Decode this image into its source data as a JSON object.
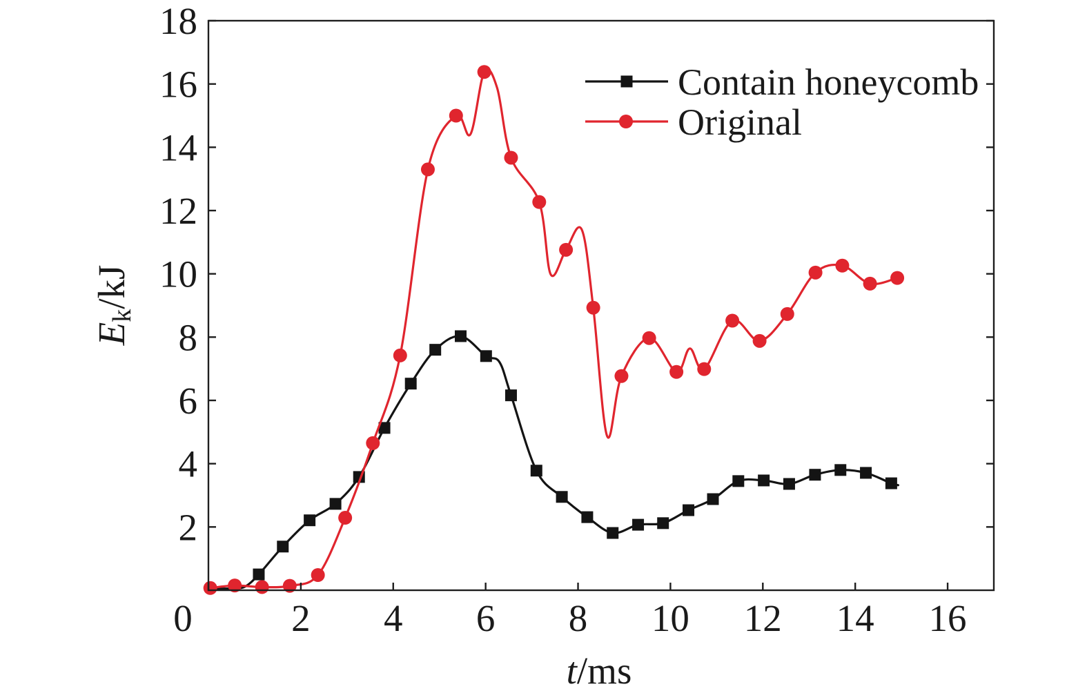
{
  "chart_data": {
    "type": "line",
    "xlabel": {
      "symbol": "t",
      "unit": "/ms"
    },
    "ylabel": {
      "symbol": "E",
      "subscript": "k",
      "unit": "/kJ"
    },
    "xlim": [
      0,
      17
    ],
    "ylim": [
      0,
      18
    ],
    "xticks": [
      0,
      2,
      4,
      6,
      8,
      10,
      12,
      14,
      16
    ],
    "yticks": [
      2,
      4,
      6,
      8,
      10,
      12,
      14,
      16,
      18
    ],
    "grid": false,
    "legend_position": "top-right",
    "series": [
      {
        "name": "Contain honeycomb",
        "color": "#141414",
        "marker": "square",
        "x": [
          0.02,
          0.54,
          0.8,
          1.09,
          1.61,
          2.19,
          2.75,
          3.26,
          3.81,
          4.38,
          4.91,
          5.46,
          6.01,
          6.3,
          6.55,
          7.1,
          7.65,
          8.2,
          8.75,
          9.3,
          9.84,
          10.39,
          10.92,
          11.47,
          12.02,
          12.57,
          13.13,
          13.68,
          14.23,
          14.78,
          14.93
        ],
        "y": [
          0.05,
          0.06,
          0.12,
          0.5,
          1.38,
          2.21,
          2.73,
          3.58,
          5.13,
          6.53,
          7.6,
          8.03,
          7.4,
          7.21,
          6.16,
          3.78,
          2.95,
          2.31,
          1.81,
          2.07,
          2.12,
          2.53,
          2.88,
          3.45,
          3.47,
          3.36,
          3.65,
          3.8,
          3.71,
          3.38,
          3.32
        ],
        "marked": [
          false,
          false,
          false,
          true,
          true,
          true,
          true,
          true,
          true,
          true,
          true,
          true,
          true,
          false,
          true,
          true,
          true,
          true,
          true,
          true,
          true,
          true,
          true,
          true,
          true,
          true,
          true,
          true,
          true,
          true,
          false
        ]
      },
      {
        "name": "Original",
        "color": "#e0252e",
        "marker": "circle",
        "x": [
          0.04,
          0.57,
          1.16,
          1.76,
          2.37,
          2.96,
          3.56,
          4.15,
          4.75,
          5.36,
          5.67,
          5.97,
          6.25,
          6.55,
          7.16,
          7.41,
          7.74,
          8.08,
          8.33,
          8.63,
          8.94,
          9.54,
          10.13,
          10.42,
          10.73,
          11.34,
          11.93,
          12.53,
          13.14,
          13.72,
          14.32,
          14.91
        ],
        "y": [
          0.07,
          0.15,
          0.1,
          0.14,
          0.48,
          2.29,
          4.65,
          7.42,
          13.3,
          15.0,
          14.41,
          16.38,
          15.87,
          13.67,
          12.27,
          9.98,
          10.76,
          11.4,
          8.93,
          4.87,
          6.77,
          7.97,
          6.9,
          7.64,
          6.99,
          8.52,
          7.88,
          8.73,
          10.04,
          10.26,
          9.69,
          9.87
        ],
        "marked": [
          true,
          true,
          true,
          true,
          true,
          true,
          true,
          true,
          true,
          true,
          false,
          true,
          false,
          true,
          true,
          false,
          true,
          false,
          true,
          false,
          true,
          true,
          true,
          false,
          true,
          true,
          true,
          true,
          true,
          true,
          true,
          true
        ]
      }
    ]
  }
}
